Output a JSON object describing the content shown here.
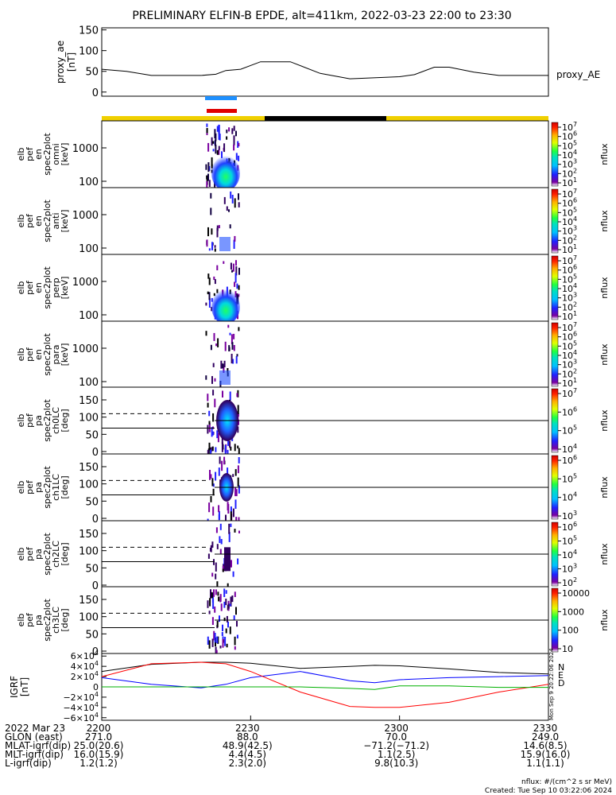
{
  "title": "PRELIMINARY ELFIN-B EPDE, alt=411km, 2022-03-23 22:00 to 23:30",
  "colors": {
    "black": "#000000",
    "blue": "#0000ff",
    "red": "#ff0000",
    "green": "#00b000",
    "yellow": "#f0d000",
    "bar_blue": "#1e90ff",
    "bar_red": "#e00000"
  },
  "chart_data": [
    {
      "type": "line",
      "id": "proxy_ae",
      "ylabel": [
        "proxy_ae",
        "[nT]"
      ],
      "legend": "proxy_AE",
      "ylim": [
        -10,
        155
      ],
      "yticks": [
        "150",
        "100",
        "50",
        "0"
      ],
      "x": [
        "22:00",
        "22:05",
        "22:10",
        "22:15",
        "22:20",
        "22:23",
        "22:25",
        "22:28",
        "22:32",
        "22:38",
        "22:44",
        "22:50",
        "23:00",
        "23:03",
        "23:07",
        "23:10",
        "23:15",
        "23:20",
        "23:30"
      ],
      "values": [
        55,
        50,
        40,
        40,
        40,
        43,
        52,
        55,
        73,
        73,
        45,
        32,
        37,
        42,
        60,
        60,
        48,
        40,
        40
      ]
    },
    {
      "type": "heatmap",
      "id": "omni",
      "ylabel": [
        "elb",
        "pef",
        "en",
        "spec2plot",
        "omni",
        "[keV]"
      ],
      "yticks": [
        "1000",
        "100"
      ],
      "cbar_label": "nflux",
      "cbar_ticks": [
        "10^7",
        "10^6",
        "10^5",
        "10^4",
        "10^3",
        "10^2",
        "10^1"
      ]
    },
    {
      "type": "heatmap",
      "id": "anti",
      "ylabel": [
        "elb",
        "pef",
        "en",
        "spec2plot",
        "anti",
        "[keV]"
      ],
      "yticks": [
        "1000",
        "100"
      ],
      "cbar_label": "nflux",
      "cbar_ticks": [
        "10^7",
        "10^6",
        "10^5",
        "10^4",
        "10^3",
        "10^2",
        "10^1"
      ]
    },
    {
      "type": "heatmap",
      "id": "perp",
      "ylabel": [
        "elb",
        "pef",
        "en",
        "spec2plot",
        "perp",
        "[keV]"
      ],
      "yticks": [
        "1000",
        "100"
      ],
      "cbar_label": "nflux",
      "cbar_ticks": [
        "10^7",
        "10^6",
        "10^5",
        "10^4",
        "10^3",
        "10^2",
        "10^1"
      ]
    },
    {
      "type": "heatmap",
      "id": "para",
      "ylabel": [
        "elb",
        "pef",
        "en",
        "spec2plot",
        "para",
        "[keV]"
      ],
      "yticks": [
        "1000",
        "100"
      ],
      "cbar_label": "nflux",
      "cbar_ticks": [
        "10^7",
        "10^6",
        "10^5",
        "10^4",
        "10^3",
        "10^2",
        "10^1"
      ]
    },
    {
      "type": "heatmap",
      "id": "ch0",
      "ylabel": [
        "elb",
        "pef",
        "pa",
        "spec2plot",
        "ch0LC",
        "[deg]"
      ],
      "yticks": [
        "150",
        "100",
        "50",
        "0"
      ],
      "cbar_label": "nflux",
      "cbar_ticks": [
        "10^7",
        "10^6",
        "10^5",
        "10^4"
      ]
    },
    {
      "type": "heatmap",
      "id": "ch1",
      "ylabel": [
        "elb",
        "pef",
        "pa",
        "spec2plot",
        "ch1LC",
        "[deg]"
      ],
      "yticks": [
        "150",
        "100",
        "50",
        "0"
      ],
      "cbar_label": "nflux",
      "cbar_ticks": [
        "10^6",
        "10^5",
        "10^4",
        "10^3"
      ]
    },
    {
      "type": "heatmap",
      "id": "ch2",
      "ylabel": [
        "elb",
        "pef",
        "pa",
        "spec2plot",
        "ch2LC",
        "[deg]"
      ],
      "yticks": [
        "150",
        "100",
        "50",
        "0"
      ],
      "cbar_label": "nflux",
      "cbar_ticks": [
        "10^6",
        "10^5",
        "10^4",
        "10^3",
        "10^2"
      ]
    },
    {
      "type": "heatmap",
      "id": "ch3",
      "ylabel": [
        "elb",
        "pef",
        "pa",
        "spec2plot",
        "ch3LC",
        "[deg]"
      ],
      "yticks": [
        "150",
        "100",
        "50",
        "0"
      ],
      "cbar_label": "nflux",
      "cbar_ticks": [
        "10000",
        "1000",
        "100",
        "10"
      ]
    },
    {
      "type": "line",
      "id": "igrf",
      "ylabel": [
        "IGRF",
        "[nT]"
      ],
      "ylim": [
        -65000,
        65000
      ],
      "yticks": [
        "6×10^4",
        "4×10^4",
        "2×10^4",
        "0",
        "−2×10^4",
        "−4×10^4",
        "−6×10^4"
      ],
      "legend": [
        "N",
        "E",
        "D"
      ],
      "x_minutes": [
        0,
        10,
        20,
        25,
        30,
        40,
        50,
        55,
        60,
        70,
        80,
        90
      ],
      "series": [
        {
          "name": "N",
          "color": "#000000",
          "values": [
            30000,
            44000,
            48000,
            48000,
            46000,
            36000,
            40000,
            42000,
            41000,
            35000,
            28000,
            25000
          ]
        },
        {
          "name": "E",
          "color": "#0000ff",
          "values": [
            18000,
            5000,
            -2000,
            5000,
            18000,
            30000,
            12000,
            8000,
            14000,
            18000,
            20000,
            22000
          ]
        },
        {
          "name": "D",
          "color": "#ff0000",
          "values": [
            20000,
            45000,
            48000,
            45000,
            30000,
            -10000,
            -38000,
            -40000,
            -40000,
            -30000,
            -10000,
            5000
          ]
        },
        {
          "name": "",
          "color": "#00b000",
          "values": [
            0,
            0,
            0,
            0,
            0,
            0,
            -3000,
            -5000,
            2000,
            2000,
            -1000,
            -1000
          ]
        }
      ]
    }
  ],
  "time_axis": {
    "ticks": [
      "2200",
      "2230",
      "2300",
      "2330"
    ],
    "rows": [
      {
        "label": "2022 Mar 23",
        "values": [
          "2200",
          "2230",
          "2300",
          "2330"
        ]
      },
      {
        "label": "GLON (east)",
        "values": [
          "271.0",
          "88.0",
          "70.0",
          "249.0"
        ]
      },
      {
        "label": "MLAT-igrf(dip)",
        "values": [
          "25.0(20.6)",
          "48.9(42.5)",
          "−71.2(−71.2)",
          "14.6(8.5)"
        ]
      },
      {
        "label": "MLT-igrf(dip)",
        "values": [
          "16.0(15.9)",
          "4.4(4.5)",
          "1.1(2.5)",
          "15.9(16.0)"
        ]
      },
      {
        "label": "L-igrf(dip)",
        "values": [
          "1.2(1.2)",
          "2.3(2.0)",
          "9.8(10.3)",
          "1.1(1.1)"
        ]
      }
    ]
  },
  "footer": {
    "units": "nflux: #/(cm^2 s sr MeV)",
    "created": "Created: Tue Sep 10 03:22:06 2024"
  },
  "side_stamp": "Mon Sep 9 20:22:06 2024"
}
